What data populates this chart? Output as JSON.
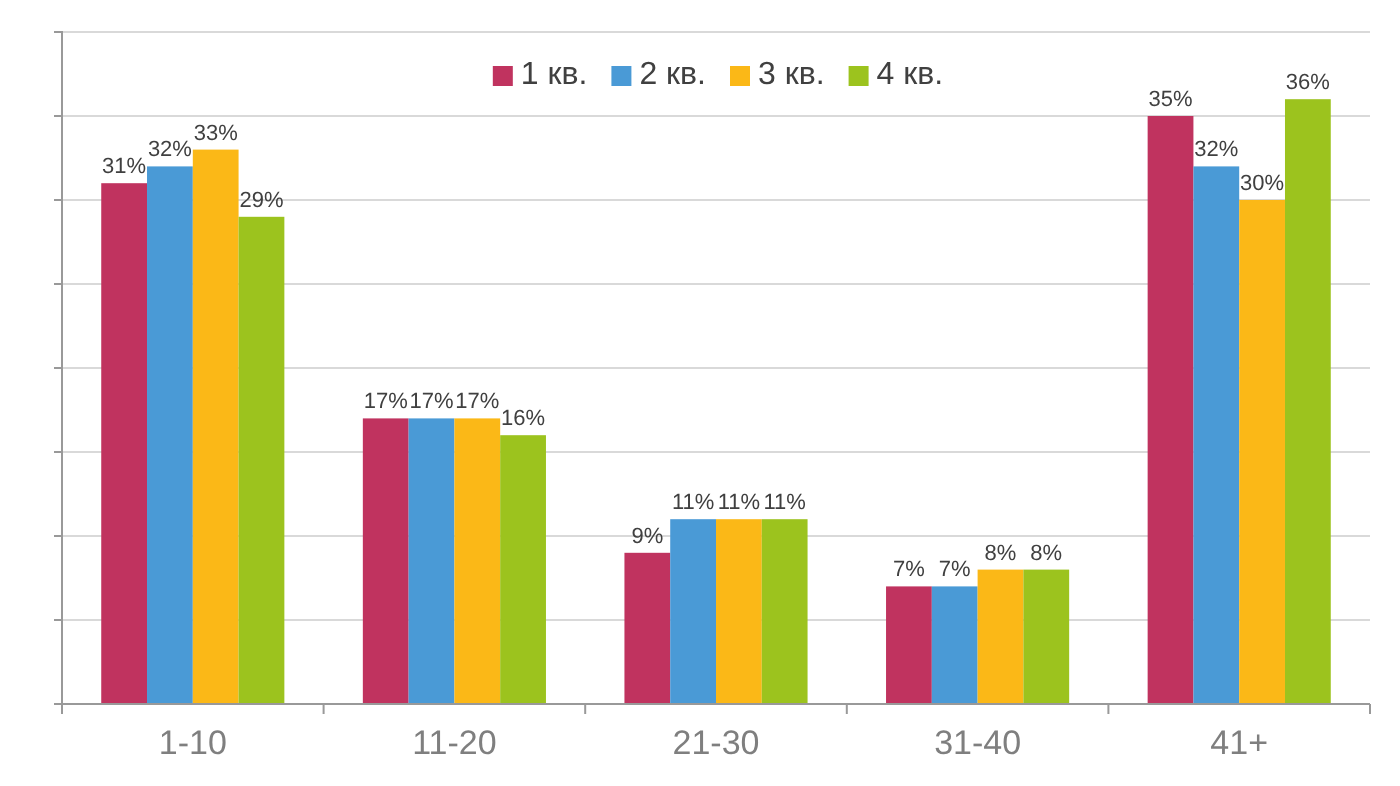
{
  "chart_data": {
    "type": "bar",
    "categories": [
      "1-10",
      "11-20",
      "21-30",
      "31-40",
      "41+"
    ],
    "series": [
      {
        "name": "1 кв.",
        "color": "#c0335f",
        "values": [
          31,
          17,
          9,
          7,
          35
        ],
        "value_labels": [
          "31%",
          "17%",
          "9%",
          "7%",
          "35%"
        ]
      },
      {
        "name": "2 кв.",
        "color": "#4a9ad6",
        "values": [
          32,
          17,
          11,
          7,
          32
        ],
        "value_labels": [
          "32%",
          "17%",
          "11%",
          "7%",
          "32%"
        ]
      },
      {
        "name": "3 кв.",
        "color": "#fbb817",
        "values": [
          33,
          17,
          11,
          8,
          30
        ],
        "value_labels": [
          "33%",
          "17%",
          "11%",
          "8%",
          "30%"
        ]
      },
      {
        "name": "4 кв.",
        "color": "#9cc31e",
        "values": [
          29,
          16,
          11,
          8,
          36
        ],
        "value_labels": [
          "29%",
          "16%",
          "11%",
          "8%",
          "36%"
        ]
      }
    ],
    "ylim": [
      0,
      40
    ],
    "yticks": [
      {
        "value": 0,
        "label": null
      },
      {
        "value": 5,
        "label": null
      },
      {
        "value": 10,
        "label": null
      },
      {
        "value": 15,
        "label": null
      },
      {
        "value": 20,
        "label": null
      },
      {
        "value": 25,
        "label": null
      },
      {
        "value": 30,
        "label": null
      },
      {
        "value": 35,
        "label": null
      },
      {
        "value": 40,
        "label": null
      }
    ],
    "grid": "y",
    "legend": "top",
    "tick_labels": "x"
  }
}
